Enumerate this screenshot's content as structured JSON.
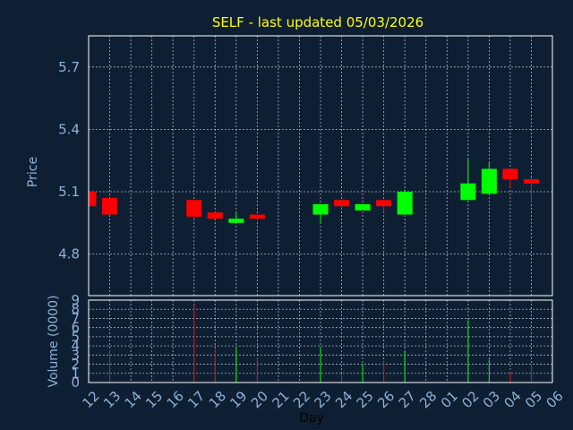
{
  "chart_data": {
    "type": "candlestick",
    "title": "SELF - last updated 05/03/2026",
    "price_panel": {
      "ylabel": "Price",
      "ylim": [
        4.6,
        5.85
      ],
      "yticks": [
        4.8,
        5.1,
        5.4,
        5.7
      ]
    },
    "volume_panel": {
      "ylabel": "Volume (0000)",
      "ylim": [
        0,
        9
      ],
      "yticks": [
        0,
        1,
        2,
        3,
        4,
        5,
        6,
        7,
        8,
        9
      ]
    },
    "xlabel": "Day",
    "x_tick_labels": [
      "12",
      "13",
      "14",
      "15",
      "16",
      "17",
      "18",
      "19",
      "20",
      "21",
      "22",
      "23",
      "24",
      "25",
      "26",
      "27",
      "28",
      "01",
      "02",
      "03",
      "04",
      "05",
      "06"
    ],
    "candles": [
      {
        "day": "12",
        "open": 5.1,
        "close": 5.03,
        "high": 5.1,
        "low": 5.03,
        "volume": 0,
        "color": "red"
      },
      {
        "day": "13",
        "open": 5.07,
        "close": 4.99,
        "high": 5.07,
        "low": 4.99,
        "volume": 3.5,
        "color": "red"
      },
      {
        "day": "17",
        "open": 5.06,
        "close": 4.98,
        "high": 5.06,
        "low": 4.97,
        "volume": 8.5,
        "color": "red"
      },
      {
        "day": "18",
        "open": 5.0,
        "close": 4.97,
        "high": 5.0,
        "low": 4.97,
        "volume": 3.7,
        "color": "red"
      },
      {
        "day": "19",
        "open": 4.95,
        "close": 4.97,
        "high": 5.0,
        "low": 4.95,
        "volume": 3.8,
        "color": "green"
      },
      {
        "day": "20",
        "open": 4.99,
        "close": 4.97,
        "high": 4.99,
        "low": 4.96,
        "volume": 2.7,
        "color": "red"
      },
      {
        "day": "23",
        "open": 4.99,
        "close": 5.04,
        "high": 5.04,
        "low": 4.95,
        "volume": 3.8,
        "color": "green"
      },
      {
        "day": "24",
        "open": 5.06,
        "close": 5.03,
        "high": 5.06,
        "low": 5.02,
        "volume": 1.0,
        "color": "red"
      },
      {
        "day": "25",
        "open": 5.01,
        "close": 5.04,
        "high": 5.04,
        "low": 5.01,
        "volume": 2.0,
        "color": "green"
      },
      {
        "day": "26",
        "open": 5.06,
        "close": 5.03,
        "high": 5.06,
        "low": 5.0,
        "volume": 2.3,
        "color": "red"
      },
      {
        "day": "27",
        "open": 4.99,
        "close": 5.1,
        "high": 5.11,
        "low": 4.99,
        "volume": 3.4,
        "color": "green"
      },
      {
        "day": "02",
        "open": 5.06,
        "close": 5.14,
        "high": 5.26,
        "low": 5.06,
        "volume": 6.8,
        "color": "green"
      },
      {
        "day": "03",
        "open": 5.09,
        "close": 5.21,
        "high": 5.24,
        "low": 5.09,
        "volume": 2.5,
        "color": "green"
      },
      {
        "day": "04",
        "open": 5.21,
        "close": 5.16,
        "high": 5.21,
        "low": 5.12,
        "volume": 1.1,
        "color": "red"
      },
      {
        "day": "05",
        "open": 5.16,
        "close": 5.14,
        "high": 5.17,
        "low": 5.05,
        "volume": 2.0,
        "color": "red"
      }
    ],
    "grid": true,
    "colors": {
      "background": "#0f1f33",
      "plot_background": "#0f1f33",
      "up": "#00ff00",
      "down": "#ff0000",
      "title": "#ffff00",
      "axis_text": "#8fb0d6",
      "grid": "#cfd8e3",
      "frame": "#ffffff"
    }
  }
}
